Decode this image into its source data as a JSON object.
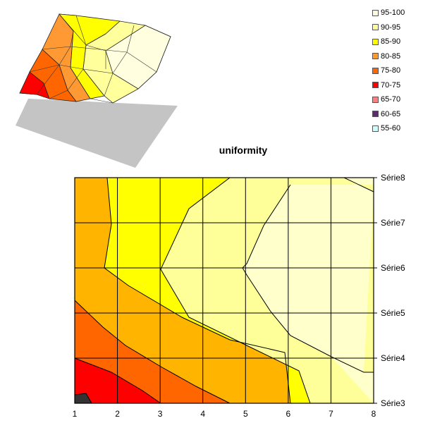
{
  "chart_data": [
    {
      "type": "surface",
      "title": "",
      "legend": {
        "placement": "top-right",
        "bands": [
          {
            "label": "95-100",
            "color": "#FFFFE0"
          },
          {
            "label": "90-95",
            "color": "#FFFF9C"
          },
          {
            "label": "85-90",
            "color": "#FFFF00"
          },
          {
            "label": "80-85",
            "color": "#FF9933"
          },
          {
            "label": "75-80",
            "color": "#FF6600"
          },
          {
            "label": "70-75",
            "color": "#FF0000"
          },
          {
            "label": "65-70",
            "color": "#FF8080"
          },
          {
            "label": "60-65",
            "color": "#5B2C6F"
          },
          {
            "label": "55-60",
            "color": "#CCFFFF"
          }
        ]
      }
    },
    {
      "type": "heatmap",
      "subtype": "contour",
      "title": "uniformity",
      "x_ticks": [
        "1",
        "2",
        "3",
        "4",
        "5",
        "6",
        "7",
        "8"
      ],
      "series": [
        "Série3",
        "Série4",
        "Série5",
        "Série6",
        "Série7",
        "Série8"
      ],
      "grid": true,
      "band_colors": {
        "70-75": "#FF0000",
        "75-80": "#FF6600",
        "80-85": "#FFB400",
        "85-90": "#FFFF00",
        "90-95": "#FFFF99",
        "95-100": "#FFFFCC",
        "below": "#333333"
      }
    }
  ]
}
